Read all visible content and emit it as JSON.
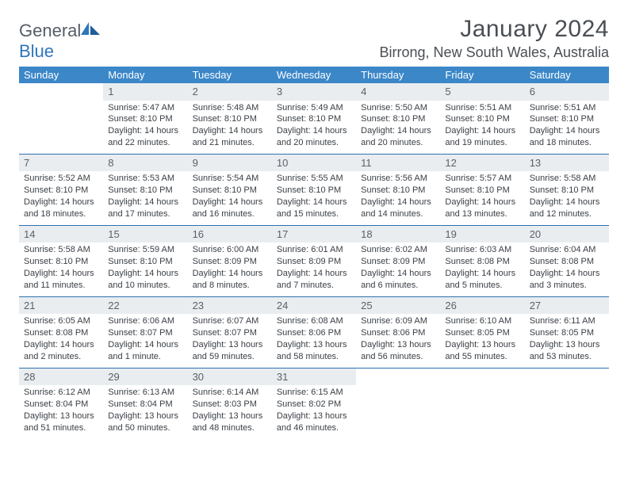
{
  "brand": {
    "part1": "General",
    "part2": "Blue"
  },
  "title": "January 2024",
  "location": "Birrong, New South Wales, Australia",
  "colors": {
    "header_bg": "#3b87c8",
    "header_text": "#ffffff",
    "daynum_bg": "#e9edf0",
    "daynum_text": "#5a6168",
    "body_text": "#3a3f45",
    "rule": "#2e72af",
    "brand_gray": "#555d66",
    "brand_blue": "#2f76bb"
  },
  "day_headers": [
    "Sunday",
    "Monday",
    "Tuesday",
    "Wednesday",
    "Thursday",
    "Friday",
    "Saturday"
  ],
  "weeks": [
    {
      "nums": [
        "",
        "1",
        "2",
        "3",
        "4",
        "5",
        "6"
      ],
      "cells": [
        null,
        {
          "sr": "Sunrise: 5:47 AM",
          "ss": "Sunset: 8:10 PM",
          "d1": "Daylight: 14 hours",
          "d2": "and 22 minutes."
        },
        {
          "sr": "Sunrise: 5:48 AM",
          "ss": "Sunset: 8:10 PM",
          "d1": "Daylight: 14 hours",
          "d2": "and 21 minutes."
        },
        {
          "sr": "Sunrise: 5:49 AM",
          "ss": "Sunset: 8:10 PM",
          "d1": "Daylight: 14 hours",
          "d2": "and 20 minutes."
        },
        {
          "sr": "Sunrise: 5:50 AM",
          "ss": "Sunset: 8:10 PM",
          "d1": "Daylight: 14 hours",
          "d2": "and 20 minutes."
        },
        {
          "sr": "Sunrise: 5:51 AM",
          "ss": "Sunset: 8:10 PM",
          "d1": "Daylight: 14 hours",
          "d2": "and 19 minutes."
        },
        {
          "sr": "Sunrise: 5:51 AM",
          "ss": "Sunset: 8:10 PM",
          "d1": "Daylight: 14 hours",
          "d2": "and 18 minutes."
        }
      ]
    },
    {
      "nums": [
        "7",
        "8",
        "9",
        "10",
        "11",
        "12",
        "13"
      ],
      "cells": [
        {
          "sr": "Sunrise: 5:52 AM",
          "ss": "Sunset: 8:10 PM",
          "d1": "Daylight: 14 hours",
          "d2": "and 18 minutes."
        },
        {
          "sr": "Sunrise: 5:53 AM",
          "ss": "Sunset: 8:10 PM",
          "d1": "Daylight: 14 hours",
          "d2": "and 17 minutes."
        },
        {
          "sr": "Sunrise: 5:54 AM",
          "ss": "Sunset: 8:10 PM",
          "d1": "Daylight: 14 hours",
          "d2": "and 16 minutes."
        },
        {
          "sr": "Sunrise: 5:55 AM",
          "ss": "Sunset: 8:10 PM",
          "d1": "Daylight: 14 hours",
          "d2": "and 15 minutes."
        },
        {
          "sr": "Sunrise: 5:56 AM",
          "ss": "Sunset: 8:10 PM",
          "d1": "Daylight: 14 hours",
          "d2": "and 14 minutes."
        },
        {
          "sr": "Sunrise: 5:57 AM",
          "ss": "Sunset: 8:10 PM",
          "d1": "Daylight: 14 hours",
          "d2": "and 13 minutes."
        },
        {
          "sr": "Sunrise: 5:58 AM",
          "ss": "Sunset: 8:10 PM",
          "d1": "Daylight: 14 hours",
          "d2": "and 12 minutes."
        }
      ]
    },
    {
      "nums": [
        "14",
        "15",
        "16",
        "17",
        "18",
        "19",
        "20"
      ],
      "cells": [
        {
          "sr": "Sunrise: 5:58 AM",
          "ss": "Sunset: 8:10 PM",
          "d1": "Daylight: 14 hours",
          "d2": "and 11 minutes."
        },
        {
          "sr": "Sunrise: 5:59 AM",
          "ss": "Sunset: 8:10 PM",
          "d1": "Daylight: 14 hours",
          "d2": "and 10 minutes."
        },
        {
          "sr": "Sunrise: 6:00 AM",
          "ss": "Sunset: 8:09 PM",
          "d1": "Daylight: 14 hours",
          "d2": "and 8 minutes."
        },
        {
          "sr": "Sunrise: 6:01 AM",
          "ss": "Sunset: 8:09 PM",
          "d1": "Daylight: 14 hours",
          "d2": "and 7 minutes."
        },
        {
          "sr": "Sunrise: 6:02 AM",
          "ss": "Sunset: 8:09 PM",
          "d1": "Daylight: 14 hours",
          "d2": "and 6 minutes."
        },
        {
          "sr": "Sunrise: 6:03 AM",
          "ss": "Sunset: 8:08 PM",
          "d1": "Daylight: 14 hours",
          "d2": "and 5 minutes."
        },
        {
          "sr": "Sunrise: 6:04 AM",
          "ss": "Sunset: 8:08 PM",
          "d1": "Daylight: 14 hours",
          "d2": "and 3 minutes."
        }
      ]
    },
    {
      "nums": [
        "21",
        "22",
        "23",
        "24",
        "25",
        "26",
        "27"
      ],
      "cells": [
        {
          "sr": "Sunrise: 6:05 AM",
          "ss": "Sunset: 8:08 PM",
          "d1": "Daylight: 14 hours",
          "d2": "and 2 minutes."
        },
        {
          "sr": "Sunrise: 6:06 AM",
          "ss": "Sunset: 8:07 PM",
          "d1": "Daylight: 14 hours",
          "d2": "and 1 minute."
        },
        {
          "sr": "Sunrise: 6:07 AM",
          "ss": "Sunset: 8:07 PM",
          "d1": "Daylight: 13 hours",
          "d2": "and 59 minutes."
        },
        {
          "sr": "Sunrise: 6:08 AM",
          "ss": "Sunset: 8:06 PM",
          "d1": "Daylight: 13 hours",
          "d2": "and 58 minutes."
        },
        {
          "sr": "Sunrise: 6:09 AM",
          "ss": "Sunset: 8:06 PM",
          "d1": "Daylight: 13 hours",
          "d2": "and 56 minutes."
        },
        {
          "sr": "Sunrise: 6:10 AM",
          "ss": "Sunset: 8:05 PM",
          "d1": "Daylight: 13 hours",
          "d2": "and 55 minutes."
        },
        {
          "sr": "Sunrise: 6:11 AM",
          "ss": "Sunset: 8:05 PM",
          "d1": "Daylight: 13 hours",
          "d2": "and 53 minutes."
        }
      ]
    },
    {
      "nums": [
        "28",
        "29",
        "30",
        "31",
        "",
        "",
        ""
      ],
      "cells": [
        {
          "sr": "Sunrise: 6:12 AM",
          "ss": "Sunset: 8:04 PM",
          "d1": "Daylight: 13 hours",
          "d2": "and 51 minutes."
        },
        {
          "sr": "Sunrise: 6:13 AM",
          "ss": "Sunset: 8:04 PM",
          "d1": "Daylight: 13 hours",
          "d2": "and 50 minutes."
        },
        {
          "sr": "Sunrise: 6:14 AM",
          "ss": "Sunset: 8:03 PM",
          "d1": "Daylight: 13 hours",
          "d2": "and 48 minutes."
        },
        {
          "sr": "Sunrise: 6:15 AM",
          "ss": "Sunset: 8:02 PM",
          "d1": "Daylight: 13 hours",
          "d2": "and 46 minutes."
        },
        null,
        null,
        null
      ]
    }
  ]
}
